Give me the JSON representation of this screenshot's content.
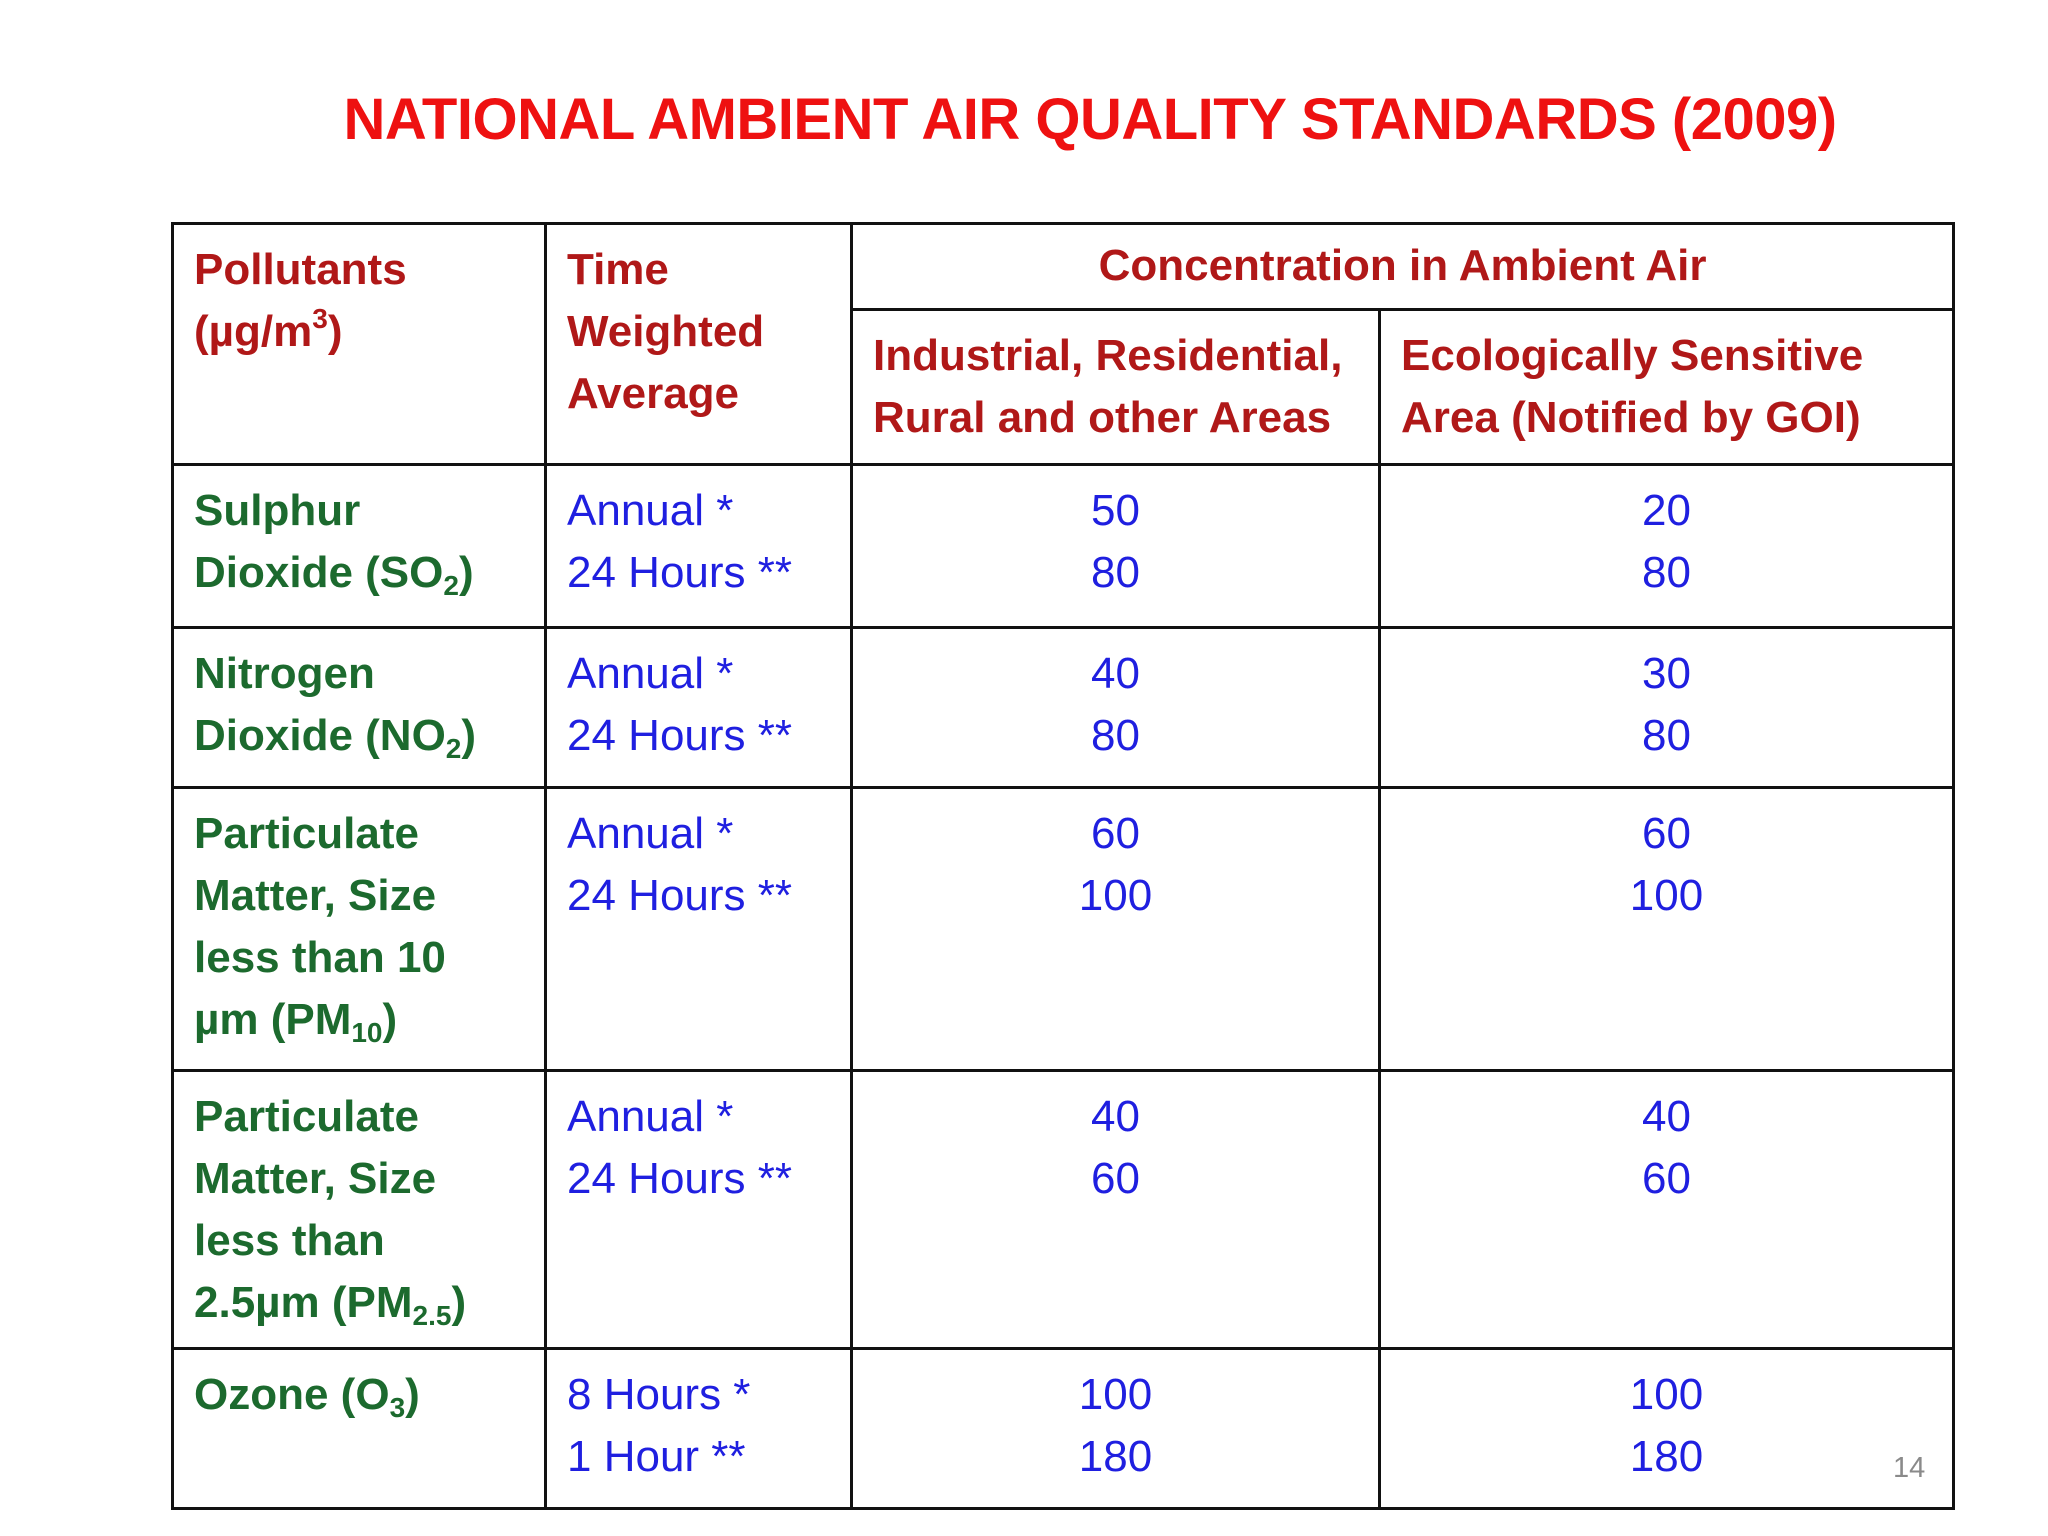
{
  "title": "NATIONAL AMBIENT AIR QUALITY STANDARDS (2009)",
  "header": {
    "pollutants": "Pollutants",
    "unit_prefix": "(µg/m",
    "unit_sup": "3",
    "unit_suffix": ")",
    "twa_lines": [
      "Time",
      "Weighted",
      "Average"
    ],
    "concentration": "Concentration in Ambient Air",
    "area1_lines": [
      "Industrial, Residential,",
      "Rural and other Areas"
    ],
    "area2_lines": [
      "Ecologically Sensitive",
      "Area (Notified by GOI)"
    ]
  },
  "rows": [
    {
      "pollutant": {
        "lines": [
          "Sulphur"
        ],
        "last_prefix": "Dioxide (SO",
        "sub": "2",
        "last_suffix": ")"
      },
      "twa": [
        "Annual *",
        "24 Hours **"
      ],
      "area1": [
        "50",
        "80"
      ],
      "area2": [
        "20",
        "80"
      ]
    },
    {
      "pollutant": {
        "lines": [
          "Nitrogen"
        ],
        "last_prefix": "Dioxide (NO",
        "sub": "2",
        "last_suffix": ")"
      },
      "twa": [
        "Annual *",
        "24 Hours **"
      ],
      "area1": [
        "40",
        "80"
      ],
      "area2": [
        "30",
        "80"
      ]
    },
    {
      "pollutant": {
        "lines": [
          "Particulate",
          "Matter, Size",
          "less than 10"
        ],
        "last_prefix": "µm (PM",
        "sub": "10",
        "last_suffix": ")"
      },
      "twa": [
        "Annual *",
        "24 Hours **"
      ],
      "area1": [
        "60",
        "100"
      ],
      "area2": [
        "60",
        "100"
      ]
    },
    {
      "pollutant": {
        "lines": [
          "Particulate",
          "Matter, Size",
          "less than"
        ],
        "last_prefix": "2.5µm (PM",
        "sub": "2.5",
        "last_suffix": ")"
      },
      "twa": [
        "Annual *",
        "24 Hours **"
      ],
      "area1": [
        "40",
        "60"
      ],
      "area2": [
        "40",
        "60"
      ]
    },
    {
      "pollutant": {
        "lines": [],
        "last_prefix": "Ozone (O",
        "sub": "3",
        "last_suffix": ")"
      },
      "twa": [
        "8 Hours *",
        "1 Hour **"
      ],
      "area1": [
        "100",
        "180"
      ],
      "area2": [
        "100",
        "180"
      ]
    }
  ],
  "page_number": "14"
}
